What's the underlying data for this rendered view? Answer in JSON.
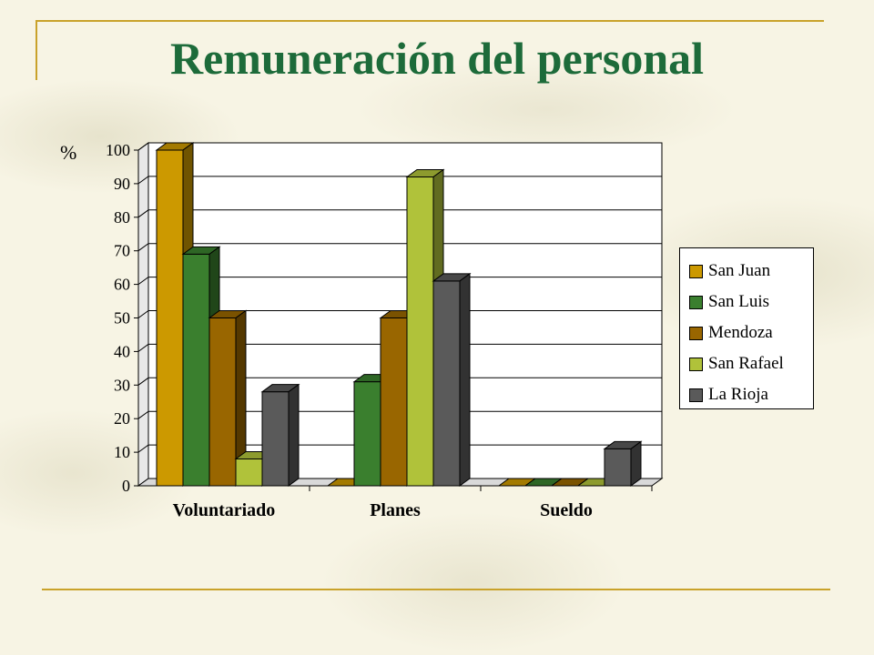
{
  "slide": {
    "title": "Remuneración del personal"
  },
  "chart_data": {
    "type": "bar",
    "ylabel": "%",
    "ylim": [
      0,
      100
    ],
    "yticks": [
      0,
      10,
      20,
      30,
      40,
      50,
      60,
      70,
      80,
      90,
      100
    ],
    "grid": true,
    "legend_position": "right",
    "categories": [
      "Voluntariado",
      "Planes",
      "Sueldo"
    ],
    "series": [
      {
        "name": "San Juan",
        "color": "#cc9900",
        "values": [
          100,
          0,
          0
        ]
      },
      {
        "name": "San Luis",
        "color": "#3a7f2e",
        "values": [
          69,
          31,
          0
        ]
      },
      {
        "name": "Mendoza",
        "color": "#996600",
        "values": [
          50,
          50,
          0
        ]
      },
      {
        "name": "San Rafael",
        "color": "#b0c23a",
        "values": [
          8,
          92,
          0
        ]
      },
      {
        "name": "La Rioja",
        "color": "#5a5a5a",
        "values": [
          28,
          61,
          11
        ]
      }
    ]
  }
}
